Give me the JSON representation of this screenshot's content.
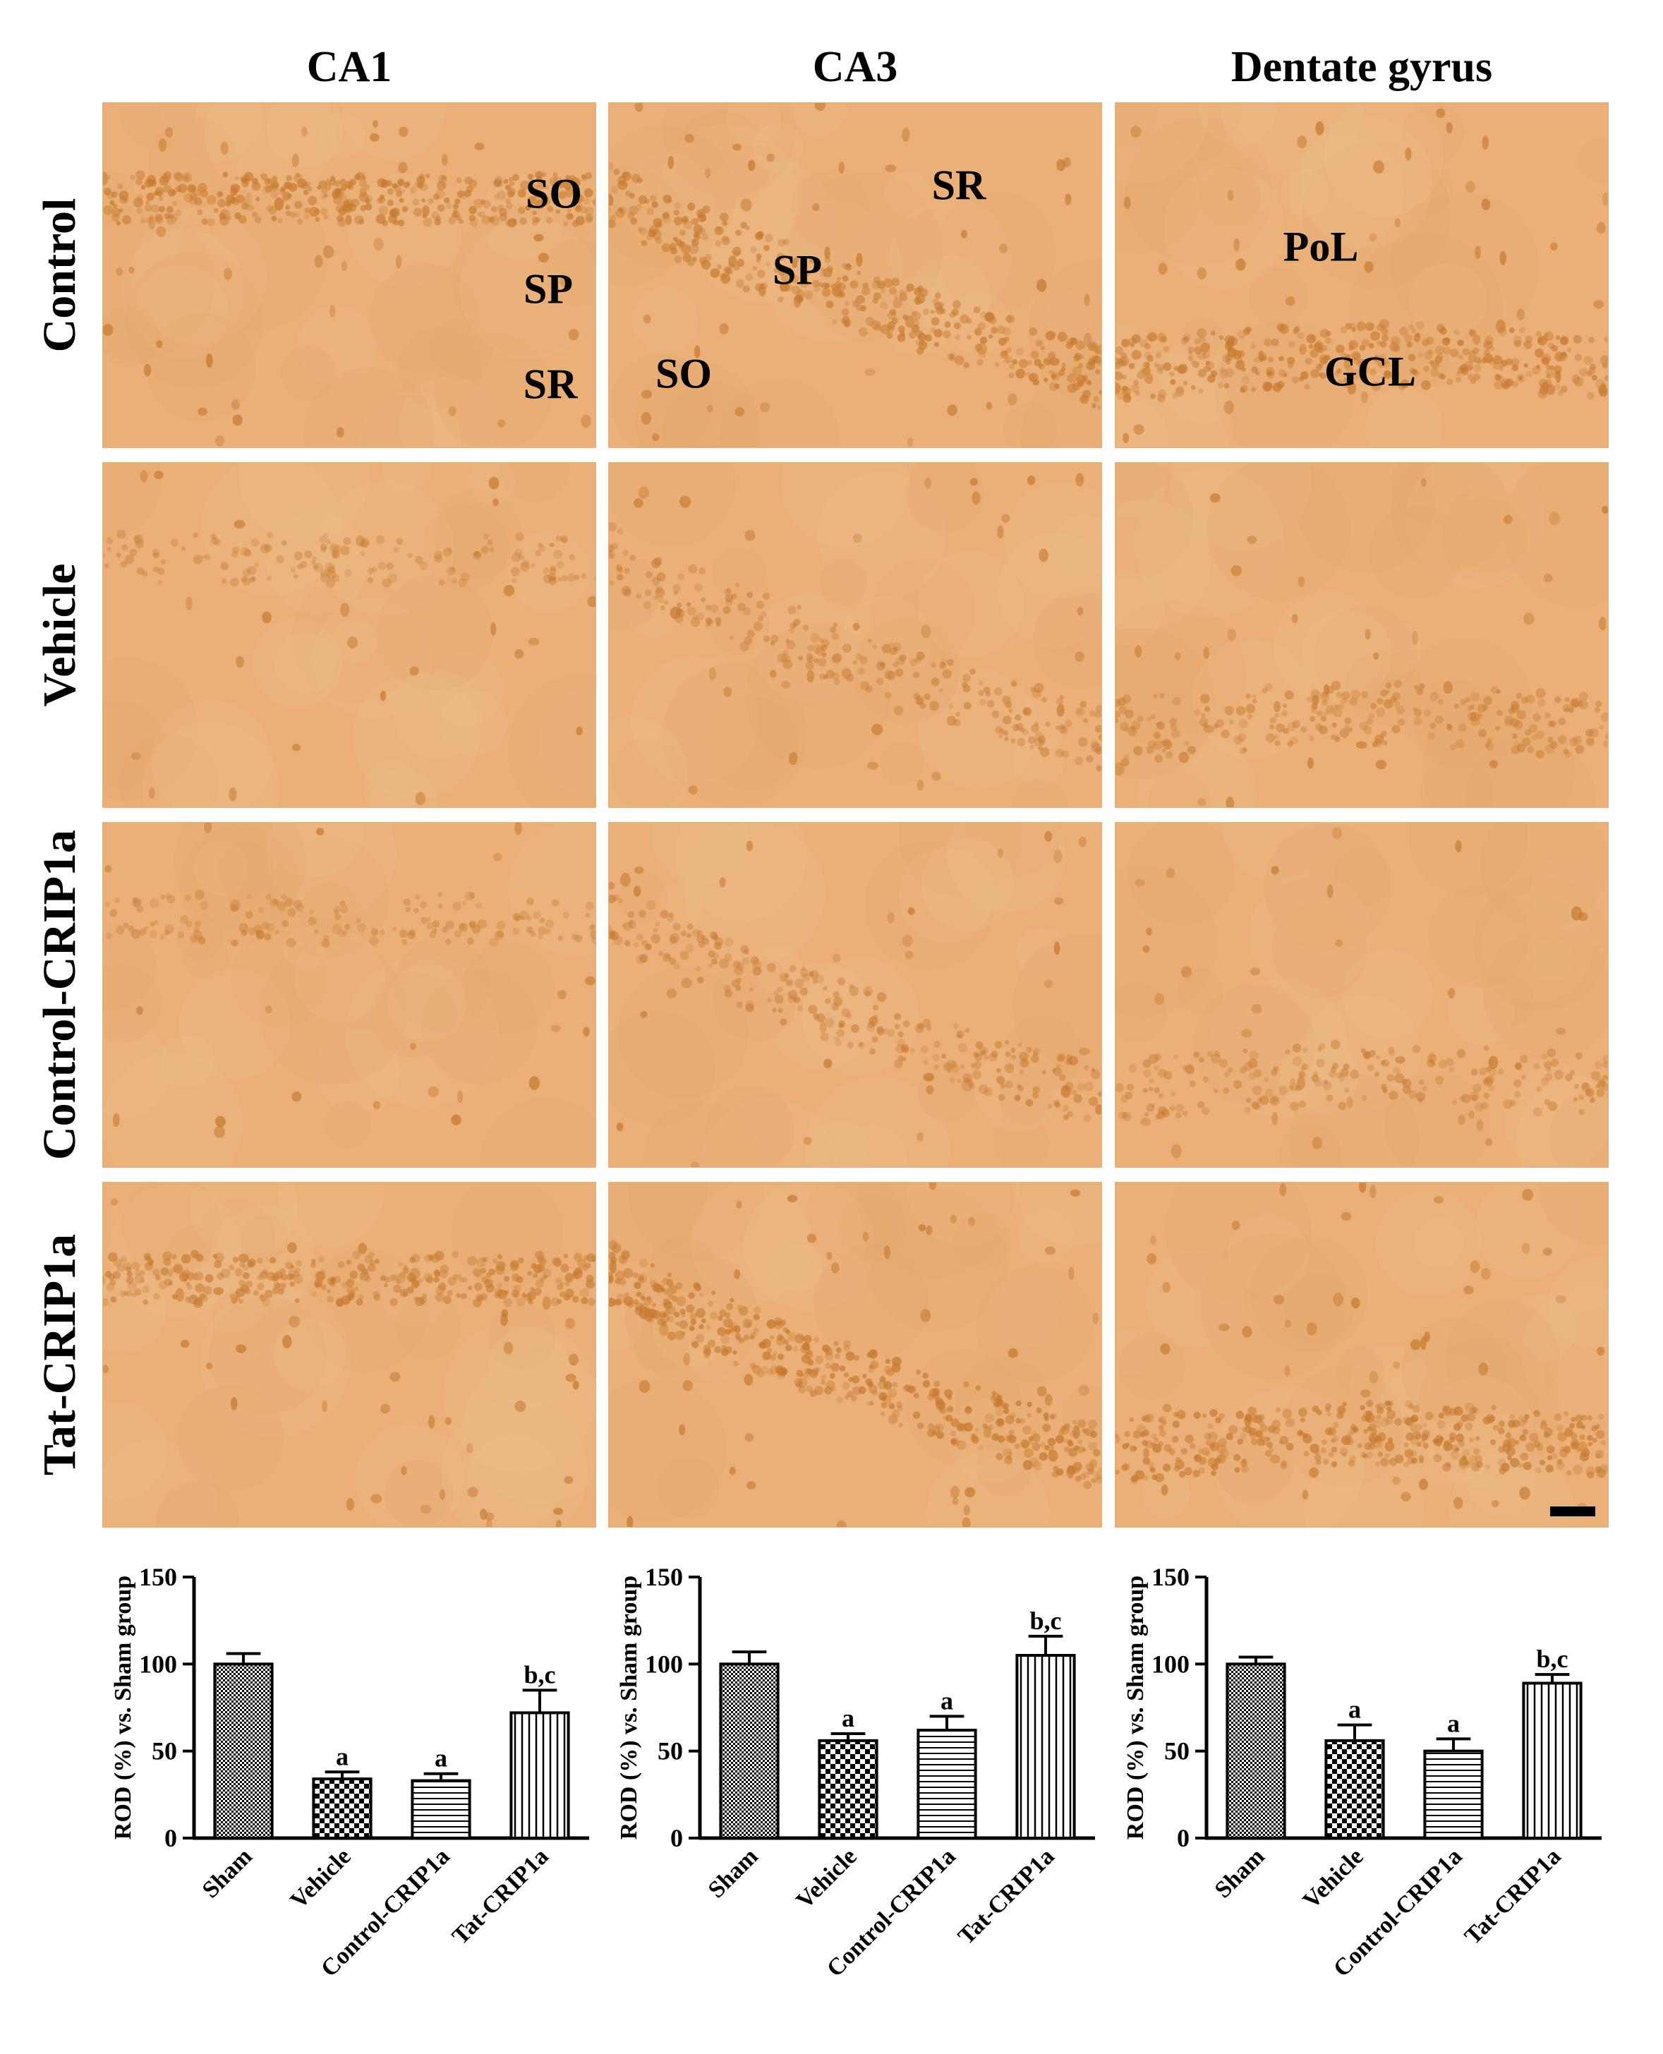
{
  "figure": {
    "column_headers": [
      "CA1",
      "CA3",
      "Dentate gyrus"
    ],
    "row_labels": [
      "Control",
      "Vehicle",
      "Control-CRIP1a",
      "Tat-CRIP1a"
    ],
    "layer_labels": {
      "ca1": [
        "SO",
        "SP",
        "SR"
      ],
      "ca3": [
        "SR",
        "SP",
        "SO"
      ],
      "dg": [
        "PoL",
        "GCL"
      ]
    },
    "colors": {
      "stain_background": "#eab078",
      "stain_cells": "#c77a2f"
    },
    "staining_intensity": [
      [
        0.85,
        0.85,
        0.85
      ],
      [
        0.35,
        0.55,
        0.55
      ],
      [
        0.35,
        0.6,
        0.5
      ],
      [
        0.75,
        0.95,
        0.9
      ]
    ]
  },
  "chart_data": [
    {
      "type": "bar",
      "panel": "CA1",
      "ylabel": "ROD (%) vs. Sham group",
      "ylim": [
        0,
        150
      ],
      "yticks": [
        0,
        50,
        100,
        150
      ],
      "categories": [
        "Sham",
        "Vehicle",
        "Control-CRIP1a",
        "Tat-CRIP1a"
      ],
      "values": [
        100,
        34,
        33,
        72
      ],
      "errors": [
        6,
        4,
        4,
        13
      ],
      "annotations": [
        "",
        "a",
        "a",
        "b,c"
      ],
      "patterns": [
        "checker-fine",
        "checker",
        "horizontal",
        "vertical"
      ]
    },
    {
      "type": "bar",
      "panel": "CA3",
      "ylabel": "ROD (%) vs. Sham group",
      "ylim": [
        0,
        150
      ],
      "yticks": [
        0,
        50,
        100,
        150
      ],
      "categories": [
        "Sham",
        "Vehicle",
        "Control-CRIP1a",
        "Tat-CRIP1a"
      ],
      "values": [
        100,
        56,
        62,
        105
      ],
      "errors": [
        7,
        4,
        8,
        11
      ],
      "annotations": [
        "",
        "a",
        "a",
        "b,c"
      ],
      "patterns": [
        "checker-fine",
        "checker",
        "horizontal",
        "vertical"
      ]
    },
    {
      "type": "bar",
      "panel": "Dentate gyrus",
      "ylabel": "ROD (%) vs. Sham group",
      "ylim": [
        0,
        150
      ],
      "yticks": [
        0,
        50,
        100,
        150
      ],
      "categories": [
        "Sham",
        "Vehicle",
        "Control-CRIP1a",
        "Tat-CRIP1a"
      ],
      "values": [
        100,
        56,
        50,
        89
      ],
      "errors": [
        4,
        9,
        7,
        5
      ],
      "annotations": [
        "",
        "a",
        "a",
        "b,c"
      ],
      "patterns": [
        "checker-fine",
        "checker",
        "horizontal",
        "vertical"
      ]
    }
  ]
}
